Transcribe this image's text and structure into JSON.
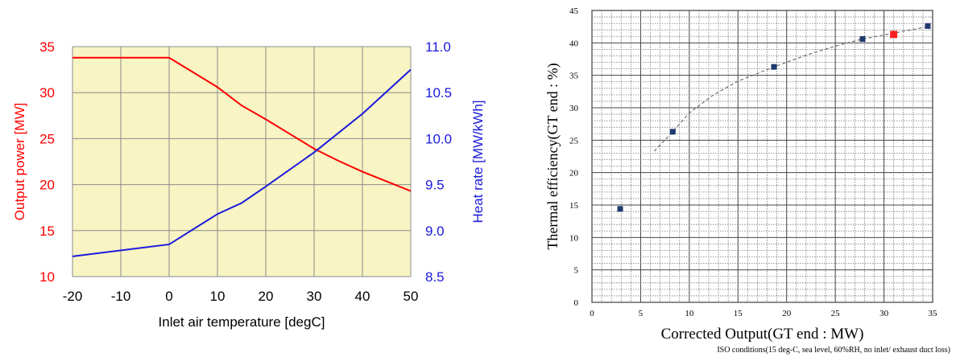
{
  "chart_data": [
    {
      "type": "line",
      "xlabel": "Inlet air temperature [degC]",
      "ylabel_left": "Output power [MW]",
      "ylabel_right": "Heat rate [MW/kWh]",
      "x_ticks": [
        -20,
        -10,
        0,
        10,
        20,
        30,
        40,
        50
      ],
      "y_left_ticks": [
        10,
        15,
        20,
        25,
        30,
        35
      ],
      "y_right_ticks": [
        "8.5",
        "9.0",
        "9.5",
        "10.0",
        "10.5",
        "11.0"
      ],
      "xlim": [
        -20,
        50
      ],
      "ylim_left": [
        10,
        35
      ],
      "ylim_right": [
        8.5,
        11.0
      ],
      "grid": true,
      "colors": {
        "background": "#f8f4c4",
        "output": "#ff0000",
        "heat_rate": "#1a1adb",
        "left_axis_text": "#ff0000",
        "right_axis_text": "#1a1adb",
        "grid": "#8c8c8c"
      },
      "series": [
        {
          "axis": "left",
          "x": [
            -20,
            0,
            10,
            15,
            20,
            25,
            30,
            35,
            40,
            50
          ],
          "values": [
            33.8,
            33.8,
            30.6,
            28.6,
            27.1,
            25.5,
            23.9,
            22.6,
            21.4,
            19.3
          ]
        },
        {
          "axis": "right",
          "x": [
            -20,
            0,
            10,
            15,
            20,
            30,
            40,
            50
          ],
          "values": [
            8.72,
            8.85,
            9.18,
            9.3,
            9.48,
            9.85,
            10.27,
            10.75
          ]
        }
      ]
    },
    {
      "type": "scatter",
      "xlabel": "Corrected Output(GT end : MW)",
      "ylabel": "Thermal efficiency(GT end : %)",
      "note": "ISO conditions(15 deg-C, sea level, 60%RH, no inlet/ exhaust duct loss)",
      "x_ticks": [
        0,
        5,
        10,
        15,
        20,
        25,
        30,
        35
      ],
      "y_ticks": [
        0,
        5,
        10,
        15,
        20,
        25,
        30,
        35,
        40,
        45
      ],
      "xlim": [
        0,
        35
      ],
      "ylim": [
        0,
        45
      ],
      "grid": true,
      "colors": {
        "points": "#1f3a6e",
        "highlight": "#ff2020",
        "trend": "#555555"
      },
      "points": [
        {
          "x": 2.9,
          "y": 14.4
        },
        {
          "x": 8.3,
          "y": 26.3
        },
        {
          "x": 18.7,
          "y": 36.3
        },
        {
          "x": 27.8,
          "y": 40.6
        },
        {
          "x": 34.5,
          "y": 42.6
        }
      ],
      "highlight_points": [
        {
          "x": 31,
          "y": 41.3
        }
      ],
      "trend_line": {
        "x": [
          6.4,
          8.3,
          10,
          12.5,
          15,
          18.7,
          22,
          25,
          27.8,
          31,
          34.5
        ],
        "y": [
          23.3,
          26.3,
          29.2,
          32.0,
          34.1,
          36.3,
          38.1,
          39.5,
          40.6,
          41.5,
          42.5
        ]
      }
    }
  ]
}
